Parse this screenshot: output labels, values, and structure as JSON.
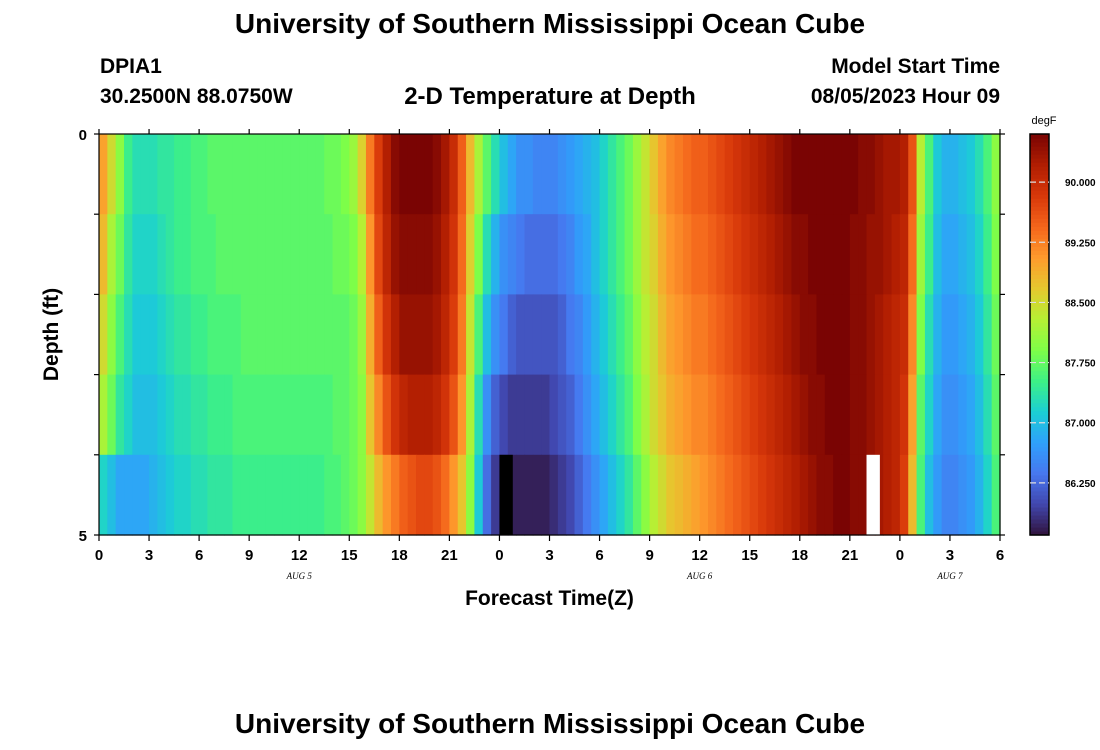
{
  "header": {
    "title": "University of Southern Mississippi Ocean Cube",
    "station_id": "DPIA1",
    "coordinates": "30.2500N  88.0750W",
    "plot_title": "2-D Temperature at Depth",
    "start_label": "Model Start Time",
    "start_value": "08/05/2023 Hour 09"
  },
  "footer": {
    "title": "University of Southern Mississippi Ocean Cube"
  },
  "chart_data": {
    "type": "heatmap",
    "title": "2-D Temperature at Depth",
    "xlabel": "Forecast Time(Z)",
    "ylabel": "Depth (ft)",
    "colorbar_label": "degF",
    "x_tick_labels": [
      "0",
      "3",
      "6",
      "9",
      "12",
      "15",
      "18",
      "21",
      "0",
      "3",
      "6",
      "9",
      "12",
      "15",
      "18",
      "21",
      "0",
      "3",
      "6"
    ],
    "date_labels": [
      {
        "label": "AUG 5",
        "at_tick": 4
      },
      {
        "label": "AUG 6",
        "at_tick": 12
      },
      {
        "label": "AUG 7",
        "at_tick": 17
      }
    ],
    "y_tick_labels": [
      "0",
      "5"
    ],
    "ylim": [
      0,
      5
    ],
    "xlim_hours": [
      0,
      54
    ],
    "depths_ft": [
      0.5,
      1.5,
      2.5,
      3.5,
      4.5
    ],
    "colorbar_ticks": [
      "90.000",
      "89.250",
      "88.500",
      "87.750",
      "87.000",
      "86.250"
    ],
    "colorbar_range": [
      85.6,
      90.6
    ],
    "colors": [
      "#30123b",
      "#4146ad",
      "#4777ef",
      "#2fa0fb",
      "#1bcfd4",
      "#3df086",
      "#7efe48",
      "#b6f034",
      "#e5c82e",
      "#fe9b2d",
      "#f4651b",
      "#d8380a",
      "#b11e02",
      "#7a0403"
    ],
    "markers": [
      {
        "hour": 24,
        "depth_ft": 4.5,
        "color": "#000000"
      },
      {
        "hour": 46,
        "depth_ft": 4.5,
        "color": "#ffffff"
      }
    ],
    "hours": [
      0,
      0.5,
      1,
      1.5,
      2,
      2.5,
      3,
      3.5,
      4,
      4.5,
      5,
      5.5,
      6,
      6.5,
      7,
      7.5,
      8,
      8.5,
      9,
      9.5,
      10,
      10.5,
      11,
      11.5,
      12,
      12.5,
      13,
      13.5,
      14,
      14.5,
      15,
      15.5,
      16,
      16.5,
      17,
      17.5,
      18,
      18.5,
      19,
      19.5,
      20,
      20.5,
      21,
      21.5,
      22,
      22.5,
      23,
      23.5,
      24,
      24.5,
      25,
      25.5,
      26,
      26.5,
      27,
      27.5,
      28,
      28.5,
      29,
      29.5,
      30,
      30.5,
      31,
      31.5,
      32,
      32.5,
      33,
      33.5,
      34,
      34.5,
      35,
      35.5,
      36,
      36.5,
      37,
      37.5,
      38,
      38.5,
      39,
      39.5,
      40,
      40.5,
      41,
      41.5,
      42,
      42.5,
      43,
      43.5,
      44,
      44.5,
      45,
      45.5,
      46,
      46.5,
      47,
      47.5,
      48,
      48.5,
      49,
      49.5,
      50,
      50.5,
      51,
      51.5,
      52,
      52.5,
      53,
      53.5
    ],
    "values": [
      [
        89.0,
        88.5,
        88.0,
        87.5,
        87.3,
        87.3,
        87.3,
        87.4,
        87.4,
        87.5,
        87.5,
        87.6,
        87.6,
        87.7,
        87.7,
        87.7,
        87.7,
        87.7,
        87.7,
        87.7,
        87.7,
        87.7,
        87.7,
        87.7,
        87.7,
        87.7,
        87.7,
        87.8,
        87.8,
        87.9,
        88.1,
        88.6,
        89.3,
        89.8,
        90.2,
        90.5,
        90.6,
        90.6,
        90.6,
        90.6,
        90.5,
        90.3,
        90.0,
        89.5,
        88.8,
        88.2,
        87.7,
        87.3,
        87.0,
        86.8,
        86.6,
        86.6,
        86.5,
        86.5,
        86.5,
        86.6,
        86.7,
        86.8,
        86.9,
        87.0,
        87.2,
        87.4,
        87.6,
        87.8,
        88.1,
        88.4,
        88.7,
        89.0,
        89.2,
        89.3,
        89.4,
        89.5,
        89.5,
        89.6,
        89.7,
        89.8,
        89.9,
        90.0,
        90.1,
        90.2,
        90.3,
        90.4,
        90.5,
        90.6,
        90.6,
        90.6,
        90.6,
        90.6,
        90.6,
        90.6,
        90.6,
        90.5,
        90.5,
        90.4,
        90.3,
        90.3,
        90.2,
        89.6,
        88.3,
        87.6,
        87.1,
        86.9,
        86.9,
        87.0,
        87.1,
        87.3,
        87.6,
        88.0
      ],
      [
        88.8,
        88.2,
        87.8,
        87.4,
        87.2,
        87.2,
        87.2,
        87.3,
        87.4,
        87.5,
        87.5,
        87.6,
        87.6,
        87.6,
        87.7,
        87.7,
        87.7,
        87.7,
        87.7,
        87.7,
        87.7,
        87.7,
        87.7,
        87.7,
        87.7,
        87.7,
        87.7,
        87.7,
        87.8,
        87.8,
        87.9,
        88.3,
        89.1,
        89.7,
        90.1,
        90.4,
        90.5,
        90.5,
        90.5,
        90.5,
        90.4,
        90.2,
        89.9,
        89.4,
        88.6,
        87.9,
        87.3,
        86.9,
        86.6,
        86.5,
        86.4,
        86.3,
        86.3,
        86.3,
        86.3,
        86.4,
        86.5,
        86.7,
        86.8,
        87.0,
        87.2,
        87.4,
        87.6,
        87.8,
        88.1,
        88.4,
        88.6,
        88.9,
        89.1,
        89.2,
        89.3,
        89.4,
        89.4,
        89.5,
        89.6,
        89.7,
        89.8,
        89.9,
        90.0,
        90.1,
        90.2,
        90.3,
        90.4,
        90.5,
        90.5,
        90.6,
        90.6,
        90.6,
        90.6,
        90.6,
        90.5,
        90.5,
        90.4,
        90.4,
        90.3,
        90.2,
        90.1,
        89.4,
        88.1,
        87.5,
        87.0,
        86.8,
        86.8,
        86.9,
        87.0,
        87.2,
        87.5,
        87.9
      ],
      [
        88.5,
        88.0,
        87.6,
        87.3,
        87.1,
        87.1,
        87.1,
        87.2,
        87.3,
        87.4,
        87.4,
        87.5,
        87.5,
        87.6,
        87.6,
        87.6,
        87.6,
        87.7,
        87.7,
        87.7,
        87.7,
        87.7,
        87.7,
        87.7,
        87.7,
        87.7,
        87.7,
        87.7,
        87.7,
        87.7,
        87.8,
        88.1,
        88.9,
        89.5,
        89.9,
        90.2,
        90.4,
        90.4,
        90.4,
        90.4,
        90.3,
        90.1,
        89.8,
        89.3,
        88.4,
        87.6,
        87.0,
        86.6,
        86.4,
        86.2,
        86.1,
        86.1,
        86.1,
        86.1,
        86.1,
        86.2,
        86.4,
        86.5,
        86.7,
        86.9,
        87.1,
        87.3,
        87.5,
        87.7,
        88.0,
        88.3,
        88.5,
        88.8,
        89.0,
        89.1,
        89.2,
        89.3,
        89.3,
        89.4,
        89.5,
        89.6,
        89.7,
        89.8,
        89.9,
        90.0,
        90.1,
        90.2,
        90.3,
        90.4,
        90.5,
        90.5,
        90.6,
        90.6,
        90.6,
        90.6,
        90.5,
        90.5,
        90.4,
        90.3,
        90.2,
        90.1,
        90.0,
        89.2,
        87.9,
        87.3,
        86.9,
        86.7,
        86.7,
        86.8,
        86.9,
        87.1,
        87.4,
        87.8
      ],
      [
        88.2,
        87.8,
        87.4,
        87.2,
        87.0,
        87.0,
        87.0,
        87.1,
        87.2,
        87.3,
        87.3,
        87.4,
        87.4,
        87.5,
        87.5,
        87.5,
        87.6,
        87.6,
        87.6,
        87.6,
        87.6,
        87.6,
        87.6,
        87.6,
        87.6,
        87.6,
        87.6,
        87.6,
        87.7,
        87.7,
        87.8,
        88.0,
        88.7,
        89.2,
        89.6,
        89.9,
        90.1,
        90.2,
        90.2,
        90.2,
        90.1,
        89.9,
        89.6,
        89.1,
        88.2,
        87.3,
        86.6,
        86.2,
        86.0,
        85.9,
        85.9,
        85.9,
        85.9,
        85.9,
        86.0,
        86.1,
        86.2,
        86.4,
        86.6,
        86.8,
        87.0,
        87.2,
        87.4,
        87.6,
        87.9,
        88.2,
        88.5,
        88.7,
        88.9,
        89.0,
        89.1,
        89.2,
        89.2,
        89.3,
        89.4,
        89.5,
        89.6,
        89.7,
        89.8,
        89.9,
        90.0,
        90.1,
        90.2,
        90.3,
        90.4,
        90.5,
        90.5,
        90.6,
        90.6,
        90.6,
        90.5,
        90.5,
        90.4,
        90.3,
        90.2,
        90.1,
        89.9,
        89.0,
        87.7,
        87.2,
        86.8,
        86.6,
        86.6,
        86.7,
        86.8,
        87.0,
        87.3,
        87.7
      ],
      [
        87.2,
        87.0,
        86.8,
        86.8,
        86.8,
        86.8,
        86.9,
        87.0,
        87.1,
        87.2,
        87.2,
        87.3,
        87.3,
        87.4,
        87.4,
        87.4,
        87.5,
        87.5,
        87.5,
        87.5,
        87.5,
        87.5,
        87.5,
        87.5,
        87.5,
        87.5,
        87.5,
        87.6,
        87.6,
        87.7,
        87.8,
        88.0,
        88.4,
        88.8,
        89.1,
        89.3,
        89.5,
        89.6,
        89.7,
        89.7,
        89.6,
        89.4,
        89.1,
        88.7,
        88.0,
        87.1,
        86.3,
        85.9,
        85.7,
        85.7,
        85.7,
        85.7,
        85.7,
        85.7,
        85.8,
        85.9,
        86.0,
        86.2,
        86.4,
        86.6,
        86.8,
        87.0,
        87.2,
        87.4,
        87.7,
        88.0,
        88.3,
        88.5,
        88.7,
        88.8,
        88.9,
        89.0,
        89.1,
        89.2,
        89.3,
        89.4,
        89.5,
        89.6,
        89.7,
        89.8,
        89.9,
        90.0,
        90.1,
        90.2,
        90.3,
        90.4,
        90.5,
        90.5,
        90.6,
        90.6,
        90.5,
        90.5,
        90.4,
        90.3,
        90.2,
        90.1,
        89.8,
        88.8,
        87.6,
        87.0,
        86.7,
        86.5,
        86.5,
        86.6,
        86.7,
        86.9,
        87.2,
        87.6
      ]
    ]
  }
}
